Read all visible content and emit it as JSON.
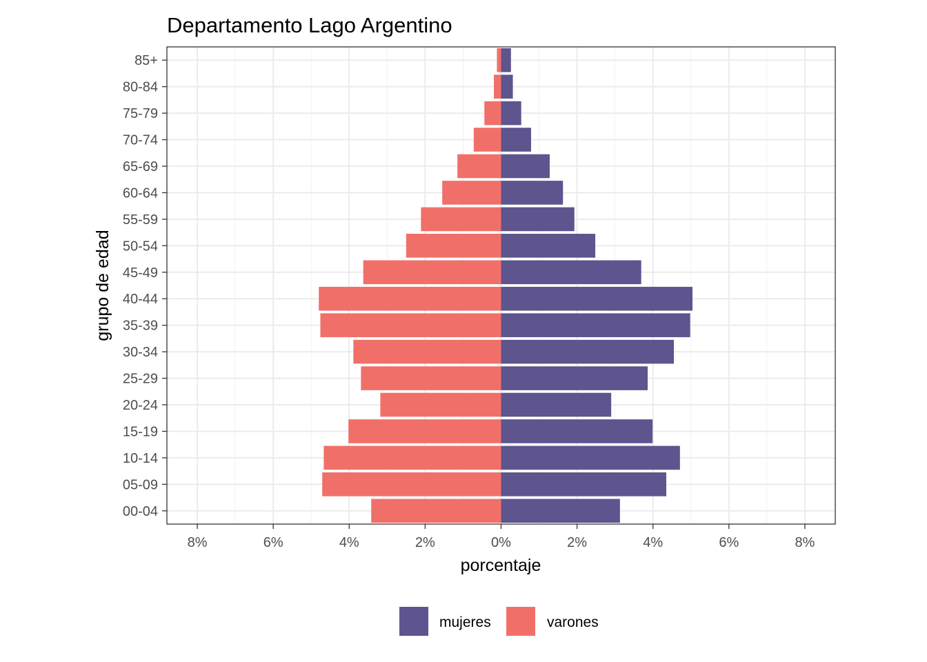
{
  "chart_data": {
    "type": "bar",
    "orientation": "horizontal",
    "layout": "population-pyramid",
    "title": "Departamento Lago Argentino",
    "xlabel": "porcentaje",
    "ylabel": "grupo de edad",
    "xlim": [
      -8.8,
      8.8
    ],
    "xticks": [
      -8,
      -6,
      -4,
      -2,
      0,
      2,
      4,
      6,
      8
    ],
    "xtick_labels": [
      "8%",
      "6%",
      "4%",
      "2%",
      "0%",
      "2%",
      "4%",
      "6%",
      "8%"
    ],
    "categories": [
      "00-04",
      "05-09",
      "10-14",
      "15-19",
      "20-24",
      "25-29",
      "30-34",
      "35-39",
      "40-44",
      "45-49",
      "50-54",
      "55-59",
      "60-64",
      "65-69",
      "70-74",
      "75-79",
      "80-84",
      "85+"
    ],
    "series": [
      {
        "name": "mujeres",
        "color": "#5e548e",
        "side": "right",
        "values": [
          3.13,
          4.35,
          4.71,
          3.99,
          2.9,
          3.86,
          4.55,
          4.98,
          5.04,
          3.69,
          2.48,
          1.93,
          1.63,
          1.28,
          0.79,
          0.53,
          0.31,
          0.26
        ]
      },
      {
        "name": "varones",
        "color": "#f07069",
        "side": "left",
        "values": [
          3.42,
          4.71,
          4.67,
          4.02,
          3.18,
          3.69,
          3.89,
          4.76,
          4.8,
          3.63,
          2.5,
          2.11,
          1.55,
          1.15,
          0.72,
          0.44,
          0.19,
          0.11
        ]
      }
    ],
    "grid": true,
    "legend_position": "bottom"
  }
}
